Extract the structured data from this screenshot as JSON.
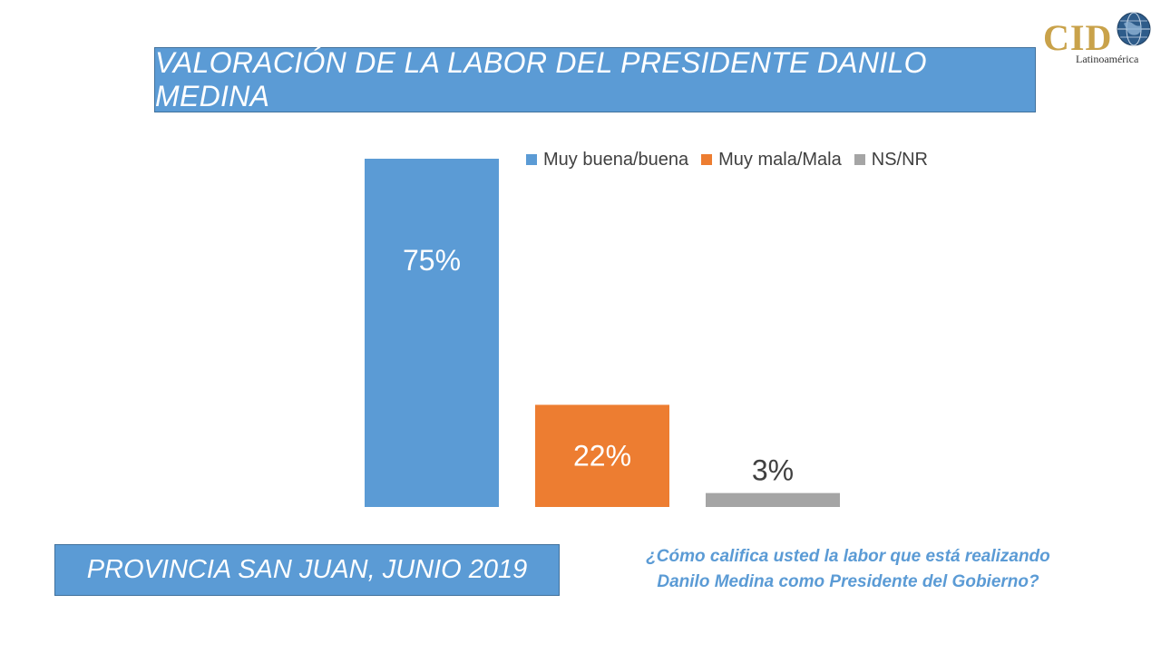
{
  "header": {
    "title": "VALORACIÓN DE LA LABOR DEL PRESIDENTE DANILO MEDINA"
  },
  "logo": {
    "brand": "CID",
    "subtitle": "Latinoamérica"
  },
  "footer": {
    "location_date": "PROVINCIA SAN JUAN, JUNIO 2019",
    "question_line1": "¿Cómo califica usted la labor que está realizando",
    "question_line2": "Danilo Medina como Presidente del Gobierno?"
  },
  "colors": {
    "accent": "#5b9bd5",
    "series_blue": "#5b9bd5",
    "series_orange": "#ed7d31",
    "series_gray": "#a5a5a5"
  },
  "chart_data": {
    "type": "bar",
    "title": "VALORACIÓN DE LA LABOR DEL PRESIDENTE DANILO MEDINA",
    "xlabel": "",
    "ylabel": "",
    "ylim": [
      0,
      75
    ],
    "grid": false,
    "legend_position": "top-right",
    "series": [
      {
        "name": "Muy buena/buena",
        "values": [
          75
        ],
        "label": "75%",
        "color": "#5b9bd5",
        "label_inside": true
      },
      {
        "name": "Muy mala/Mala",
        "values": [
          22
        ],
        "label": "22%",
        "color": "#ed7d31",
        "label_inside": true
      },
      {
        "name": "NS/NR",
        "values": [
          3
        ],
        "label": "3%",
        "color": "#a5a5a5",
        "label_inside": false
      }
    ]
  }
}
